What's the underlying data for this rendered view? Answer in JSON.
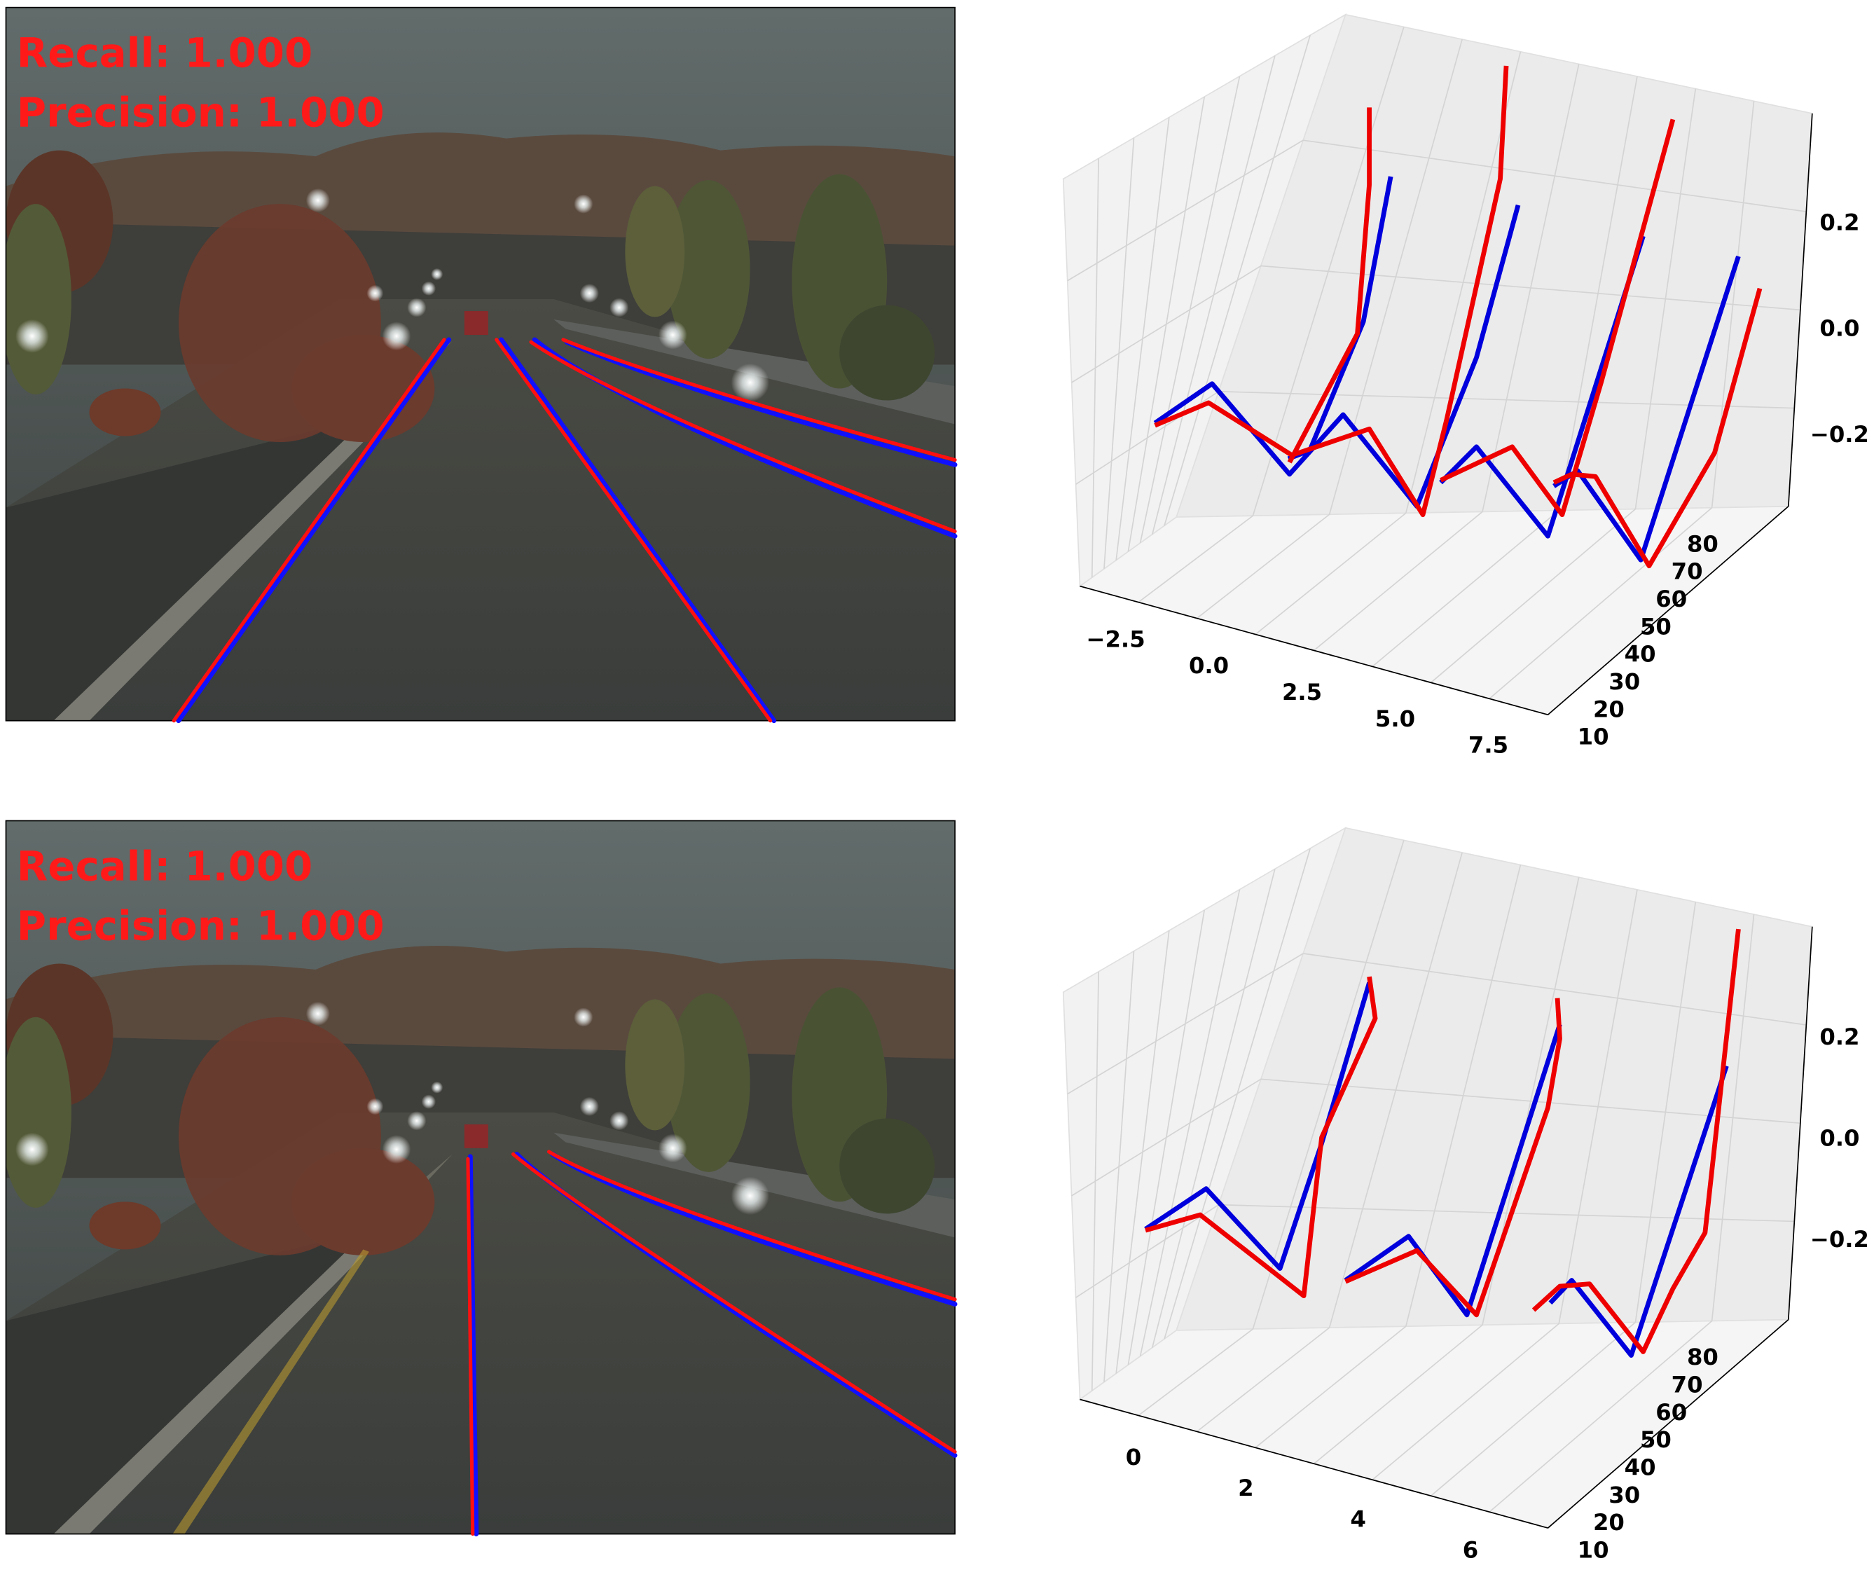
{
  "panels": [
    {
      "recall": "Recall: 1.000",
      "precision": "Precision: 1.000",
      "plot": {
        "xticks": [
          "−2.5",
          "0.0",
          "2.5",
          "5.0",
          "7.5"
        ],
        "yticks": [
          "10",
          "20",
          "30",
          "40",
          "50",
          "60",
          "70",
          "80"
        ],
        "zticks": [
          "0.2",
          "0.0",
          "−0.2"
        ]
      }
    },
    {
      "recall": "Recall: 1.000",
      "precision": "Precision: 1.000",
      "plot": {
        "xticks": [
          "0",
          "2",
          "4",
          "6"
        ],
        "yticks": [
          "10",
          "20",
          "30",
          "40",
          "50",
          "60",
          "70",
          "80"
        ],
        "zticks": [
          "0.2",
          "0.0",
          "−0.2"
        ]
      }
    }
  ]
}
